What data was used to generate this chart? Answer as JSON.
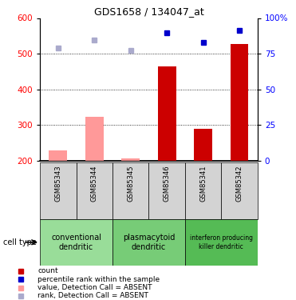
{
  "title": "GDS1658 / 134047_at",
  "samples": [
    "GSM85343",
    "GSM85344",
    "GSM85345",
    "GSM85346",
    "GSM85341",
    "GSM85342"
  ],
  "bar_values": [
    228,
    322,
    207,
    465,
    288,
    527
  ],
  "bar_colors": [
    "#ff9999",
    "#ff9999",
    "#ff9999",
    "#cc0000",
    "#cc0000",
    "#cc0000"
  ],
  "rank_values": [
    515,
    538,
    508,
    558,
    532,
    565
  ],
  "rank_colors": [
    "#aaaacc",
    "#aaaacc",
    "#aaaacc",
    "#0000cc",
    "#0000cc",
    "#0000cc"
  ],
  "ylim_left": [
    200,
    600
  ],
  "yticks_left": [
    200,
    300,
    400,
    500,
    600
  ],
  "ytick_labels_right": [
    "0",
    "25",
    "50",
    "75",
    "100%"
  ],
  "cell_positions": [
    [
      0,
      2,
      "#99dd99",
      "conventional\ndendritic"
    ],
    [
      2,
      4,
      "#77cc77",
      "plasmacytoid\ndendritic"
    ],
    [
      4,
      6,
      "#55bb55",
      "interferon producing\nkiller dendritic"
    ]
  ],
  "legend_items": [
    [
      "count",
      "#cc0000"
    ],
    [
      "percentile rank within the sample",
      "#0000cc"
    ],
    [
      "value, Detection Call = ABSENT",
      "#ff9999"
    ],
    [
      "rank, Detection Call = ABSENT",
      "#aaaacc"
    ]
  ],
  "cell_type_label": "cell type",
  "background_color": "#ffffff"
}
